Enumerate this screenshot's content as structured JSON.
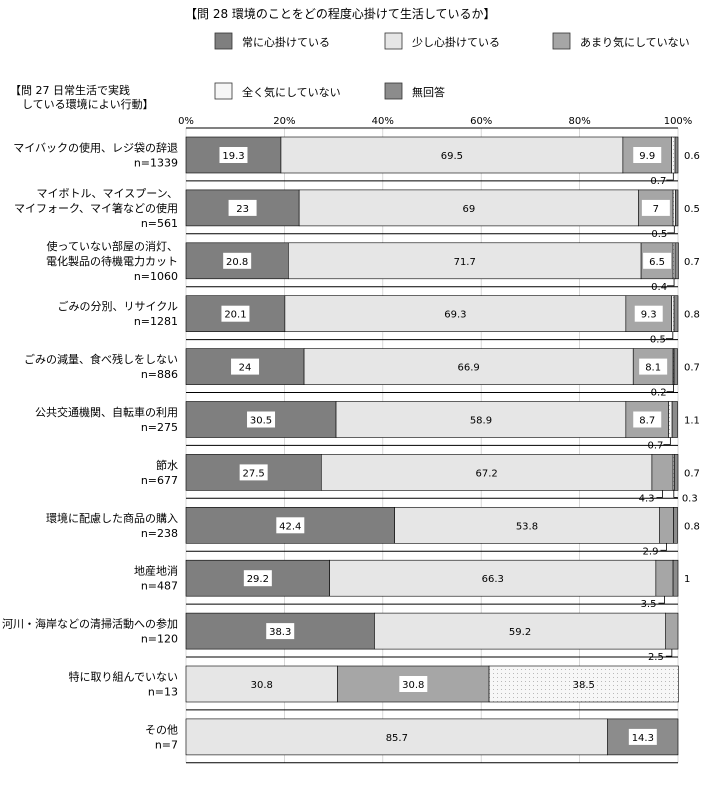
{
  "chart_data": {
    "type": "bar",
    "orientation": "horizontal",
    "stacked": true,
    "title": "【問 28  環境のことをどの程度心掛けて生活しているか】",
    "row_header": [
      "【問 27  日常生活で実践",
      "している環境によい行動】"
    ],
    "xlim": [
      0,
      100
    ],
    "ticks": [
      "0%",
      "20%",
      "40%",
      "60%",
      "80%",
      "100%"
    ],
    "legend": [
      {
        "name": "常に心掛けている",
        "color": "#7f7f7f"
      },
      {
        "name": "少し心掛けている",
        "color": "#e6e6e6"
      },
      {
        "name": "あまり気にしていない",
        "color": "#a6a6a6"
      },
      {
        "name": "全く気にしていない",
        "color": "#f6f6f6"
      },
      {
        "name": "無回答",
        "color": "#8c8c8c"
      }
    ],
    "categories": [
      {
        "label": [
          "マイバックの使用、レジ袋の辞退"
        ],
        "n": "n=1339",
        "values": [
          19.3,
          69.5,
          9.9,
          0.7,
          0.6
        ]
      },
      {
        "label": [
          "マイボトル、マイスプーン、",
          "マイフォーク、マイ箸などの使用"
        ],
        "n": "n=561",
        "values": [
          23.0,
          69.0,
          7.0,
          0.5,
          0.5
        ]
      },
      {
        "label": [
          "使っていない部屋の消灯、",
          "電化製品の待機電力カット"
        ],
        "n": "n=1060",
        "values": [
          20.8,
          71.7,
          6.5,
          0.4,
          0.7
        ]
      },
      {
        "label": [
          "ごみの分別、リサイクル"
        ],
        "n": "n=1281",
        "values": [
          20.1,
          69.3,
          9.3,
          0.5,
          0.8
        ]
      },
      {
        "label": [
          "ごみの減量、食べ残しをしない"
        ],
        "n": "n=886",
        "values": [
          24.0,
          66.9,
          8.1,
          0.2,
          0.7
        ]
      },
      {
        "label": [
          "公共交通機関、自転車の利用"
        ],
        "n": "n=275",
        "values": [
          30.5,
          58.9,
          8.7,
          0.7,
          1.1
        ]
      },
      {
        "label": [
          "節水"
        ],
        "n": "n=677",
        "values": [
          27.5,
          67.2,
          4.3,
          0.3,
          0.7
        ]
      },
      {
        "label": [
          "環境に配慮した商品の購入"
        ],
        "n": "n=238",
        "values": [
          42.4,
          53.8,
          2.9,
          0.0,
          0.8
        ]
      },
      {
        "label": [
          "地産地消"
        ],
        "n": "n=487",
        "values": [
          29.2,
          66.3,
          3.5,
          0.0,
          1.0
        ]
      },
      {
        "label": [
          "河川・海岸などの清掃活動への参加"
        ],
        "n": "n=120",
        "values": [
          38.3,
          59.2,
          2.5,
          0.0,
          0.0
        ]
      },
      {
        "label": [
          "特に取り組んでいない"
        ],
        "n": "n=13",
        "values": [
          0.0,
          30.8,
          30.8,
          38.5,
          0.0
        ]
      },
      {
        "label": [
          "その他"
        ],
        "n": "n=7",
        "values": [
          0.0,
          85.7,
          0.0,
          0.0,
          14.3
        ]
      }
    ]
  }
}
